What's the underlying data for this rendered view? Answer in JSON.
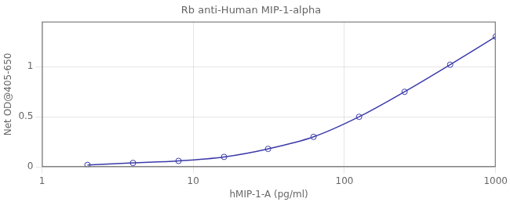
{
  "chart_data": {
    "type": "line",
    "title": "Rb anti-Human MIP-1-alpha",
    "xlabel": "hMIP-1-A (pg/ml)",
    "ylabel": "Net OD@405-650",
    "x": [
      2.0,
      4.0,
      8.0,
      16.0,
      31.25,
      62.5,
      125.0,
      250.0,
      500.0,
      1000.0
    ],
    "values": [
      0.02,
      0.04,
      0.06,
      0.1,
      0.18,
      0.3,
      0.5,
      0.75,
      1.02,
      1.3
    ],
    "color": "#3a3aaa",
    "marker": "circle",
    "log": "x",
    "xlim": [
      1,
      1000
    ],
    "xticks": [
      1,
      10,
      100,
      1000
    ],
    "ylim": [
      0,
      1.45
    ],
    "yticks": [
      0,
      0.5,
      1
    ],
    "grid": true
  }
}
